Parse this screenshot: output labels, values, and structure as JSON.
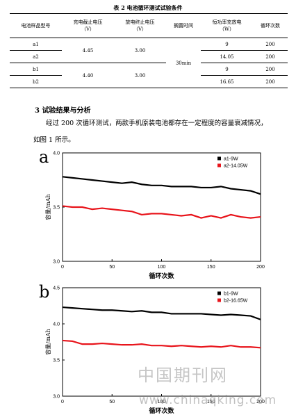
{
  "table": {
    "title": "表 2 电池循环测试试验条件",
    "headers": [
      [
        "电池样品型号"
      ],
      [
        "充电截止电压",
        "（V）"
      ],
      [
        "放电终止电压",
        "（V）"
      ],
      [
        "搁置时间"
      ],
      [
        "恒功率充放电",
        "（W）"
      ],
      [
        "循环次数"
      ]
    ],
    "rows": [
      [
        "a1",
        "4.45",
        "3.00",
        "30min",
        "9",
        "200"
      ],
      [
        "a2",
        "14.05",
        "200"
      ],
      [
        "b1",
        "4.40",
        "3.00",
        "9",
        "200"
      ],
      [
        "b2",
        "16.65",
        "200"
      ]
    ]
  },
  "section": {
    "heading": "3 试验结果与分析",
    "paragraph": "经过 200 次循环测试，两款手机原装电池都存在一定程度的容量衰减情况，如图 1 所示。"
  },
  "chart_data": [
    {
      "type": "line",
      "panel_label": "a",
      "x_label": "循环次数",
      "y_label": "容量/mAh",
      "x": [
        0,
        10,
        20,
        30,
        40,
        50,
        60,
        70,
        80,
        90,
        100,
        110,
        120,
        130,
        140,
        150,
        160,
        170,
        180,
        190,
        200
      ],
      "xlim": [
        0,
        200
      ],
      "xticks": [
        0,
        50,
        100,
        150,
        200
      ],
      "ylim": [
        3,
        4
      ],
      "yticks": [
        {
          "value": 3,
          "label": "3.0"
        },
        3.5,
        {
          "value": 4,
          "label": "4.0"
        }
      ],
      "legend": "upper right",
      "series": [
        {
          "name": "a1-9W",
          "color": "#000000",
          "values": [
            3.78,
            3.77,
            3.76,
            3.75,
            3.74,
            3.73,
            3.72,
            3.73,
            3.71,
            3.7,
            3.7,
            3.69,
            3.69,
            3.69,
            3.68,
            3.68,
            3.69,
            3.67,
            3.66,
            3.65,
            3.62
          ]
        },
        {
          "name": "a2-14.05W",
          "color": "#e8141b",
          "values": [
            3.51,
            3.5,
            3.5,
            3.48,
            3.49,
            3.48,
            3.47,
            3.46,
            3.43,
            3.44,
            3.44,
            3.43,
            3.42,
            3.43,
            3.4,
            3.42,
            3.4,
            3.43,
            3.41,
            3.4,
            3.41
          ]
        }
      ]
    },
    {
      "type": "line",
      "panel_label": "b",
      "x_label": "循环次数",
      "y_label": "容量/mAh",
      "x": [
        0,
        10,
        20,
        30,
        40,
        50,
        60,
        70,
        80,
        90,
        100,
        110,
        120,
        130,
        140,
        150,
        160,
        170,
        180,
        190,
        200
      ],
      "xlim": [
        0,
        200
      ],
      "xticks": [
        0,
        50,
        100,
        150,
        200
      ],
      "ylim": [
        3,
        4.5
      ],
      "yticks": [
        {
          "value": 3,
          "label": "3.0"
        },
        3.5,
        {
          "value": 4,
          "label": "4.0"
        },
        4.5
      ],
      "legend": "upper right",
      "series": [
        {
          "name": "b1-9W",
          "color": "#000000",
          "values": [
            4.23,
            4.22,
            4.21,
            4.2,
            4.19,
            4.19,
            4.18,
            4.17,
            4.18,
            4.16,
            4.16,
            4.14,
            4.14,
            4.14,
            4.14,
            4.13,
            4.12,
            4.13,
            4.12,
            4.11,
            4.06
          ]
        },
        {
          "name": "b2-16.65W",
          "color": "#e8141b",
          "values": [
            3.77,
            3.76,
            3.72,
            3.72,
            3.73,
            3.72,
            3.71,
            3.71,
            3.72,
            3.7,
            3.7,
            3.69,
            3.7,
            3.69,
            3.68,
            3.69,
            3.68,
            3.7,
            3.68,
            3.68,
            3.67
          ]
        }
      ]
    }
  ],
  "watermark": {
    "logo": "中国期刊网",
    "url": "www.chinaqking.com"
  }
}
